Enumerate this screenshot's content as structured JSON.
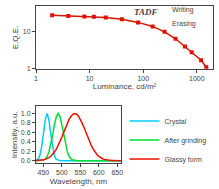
{
  "chart_data": [
    {
      "type": "line",
      "xlabel": "Luminance, cd/m²",
      "ylabel": "E.Q.E.",
      "x": [
        2,
        4,
        8,
        12,
        20,
        40,
        80,
        150,
        250,
        400,
        600,
        800,
        1200,
        1500
      ],
      "series": [
        {
          "color": "#dd1100",
          "marker": "square",
          "values": [
            28,
            27,
            26,
            25.5,
            24.5,
            22,
            18,
            14,
            10,
            6.5,
            4,
            2.8,
            1.7,
            1.1
          ]
        }
      ],
      "log": true,
      "xlim": [
        1,
        2000
      ],
      "ylim": [
        1,
        50
      ],
      "xticks": [
        1,
        10,
        100,
        1000
      ],
      "yticks": [
        1,
        10
      ],
      "grid": false,
      "annotations": [
        "TADF",
        "Writing",
        "Erasing"
      ]
    },
    {
      "type": "line",
      "xlabel": "Wavelength, nm",
      "ylabel": "Intensity, a.u.",
      "x": [
        430,
        435,
        440,
        445,
        450,
        455,
        460,
        465,
        470,
        475,
        480,
        485,
        490,
        495,
        500,
        505,
        510,
        515,
        520,
        525,
        530,
        535,
        540,
        545,
        550,
        555,
        560,
        565,
        570,
        575,
        580,
        585,
        590,
        595,
        600,
        605,
        610,
        615,
        620,
        625,
        630,
        635,
        640,
        645,
        650,
        655,
        660
      ],
      "series": [
        {
          "name": "Crystal",
          "color": "#00ccff",
          "values": [
            0.006,
            0.028,
            0.101,
            0.276,
            0.564,
            0.867,
            1,
            0.867,
            0.564,
            0.276,
            0.101,
            0.028,
            0.006,
            0.001,
            0,
            0,
            0,
            0,
            0,
            0,
            0,
            0,
            0,
            0,
            0,
            0,
            0,
            0,
            0,
            0,
            0,
            0,
            0,
            0,
            0,
            0,
            0,
            0,
            0,
            0,
            0,
            0,
            0,
            0,
            0,
            0,
            0
          ]
        },
        {
          "name": "After grinding",
          "color": "#00dd33",
          "values": [
            0,
            0,
            0.001,
            0.004,
            0.013,
            0.036,
            0.087,
            0.184,
            0.339,
            0.544,
            0.763,
            0.935,
            1,
            0.935,
            0.763,
            0.544,
            0.339,
            0.184,
            0.087,
            0.036,
            0.013,
            0.004,
            0.001,
            0,
            0,
            0,
            0,
            0,
            0,
            0,
            0,
            0,
            0,
            0,
            0,
            0,
            0,
            0,
            0,
            0,
            0,
            0,
            0,
            0,
            0,
            0,
            0
          ]
        },
        {
          "name": "Glassy form",
          "color": "#ee1100",
          "values": [
            0.002,
            0.003,
            0.006,
            0.01,
            0.017,
            0.027,
            0.041,
            0.062,
            0.092,
            0.13,
            0.181,
            0.243,
            0.318,
            0.404,
            0.5,
            0.601,
            0.702,
            0.797,
            0.88,
            0.945,
            0.986,
            1,
            0.986,
            0.945,
            0.88,
            0.797,
            0.702,
            0.601,
            0.5,
            0.404,
            0.318,
            0.243,
            0.181,
            0.13,
            0.092,
            0.062,
            0.041,
            0.027,
            0.017,
            0.01,
            0.006,
            0.003,
            0.002,
            0.001,
            0.001,
            0,
            0
          ]
        }
      ],
      "xlim": [
        430,
        660
      ],
      "ylim": [
        -0.05,
        1.15
      ],
      "xticks": [
        450,
        500,
        550,
        600,
        650
      ],
      "yticks": [
        {
          "value": 0,
          "label": "0.0"
        },
        0.2,
        0.4,
        0.6,
        0.8,
        {
          "value": 1,
          "label": "1.0"
        }
      ],
      "grid": false,
      "legend": "upper right"
    }
  ]
}
